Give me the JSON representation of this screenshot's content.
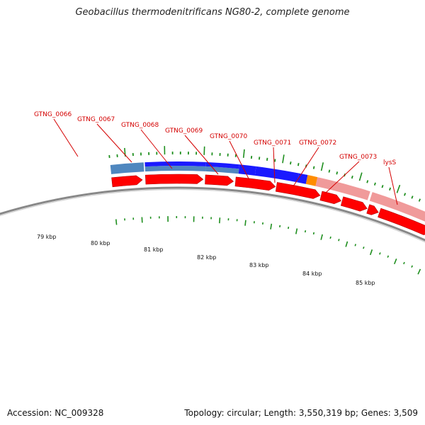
{
  "title": "Geobacillus thermodenitrificans NG80-2, complete genome",
  "footer": {
    "accession": "Accession: NC_009328",
    "summary": "Topology: circular; Length: 3,550,319 bp; Genes: 3,509"
  },
  "colors": {
    "forward_cds": "#ff0000",
    "hit_blue": "#1a1aff",
    "hit_steel": "#4f87bf",
    "hit_pink": "#f09a9a",
    "hit_orange": "#ff8c00",
    "tick_green": "#1f8f1f",
    "label_red": "#d40000",
    "backbone_gray": "#888888"
  },
  "gene_labels": [
    "GTNG_0066",
    "GTNG_0067",
    "GTNG_0068",
    "GTNG_0069",
    "GTNG_0070",
    "GTNG_0071",
    "GTNG_0072",
    "GTNG_0073",
    "lysS"
  ],
  "kbp_labels": [
    "79 kbp",
    "80 kbp",
    "81 kbp",
    "82 kbp",
    "83 kbp",
    "84 kbp",
    "85 kbp"
  ]
}
